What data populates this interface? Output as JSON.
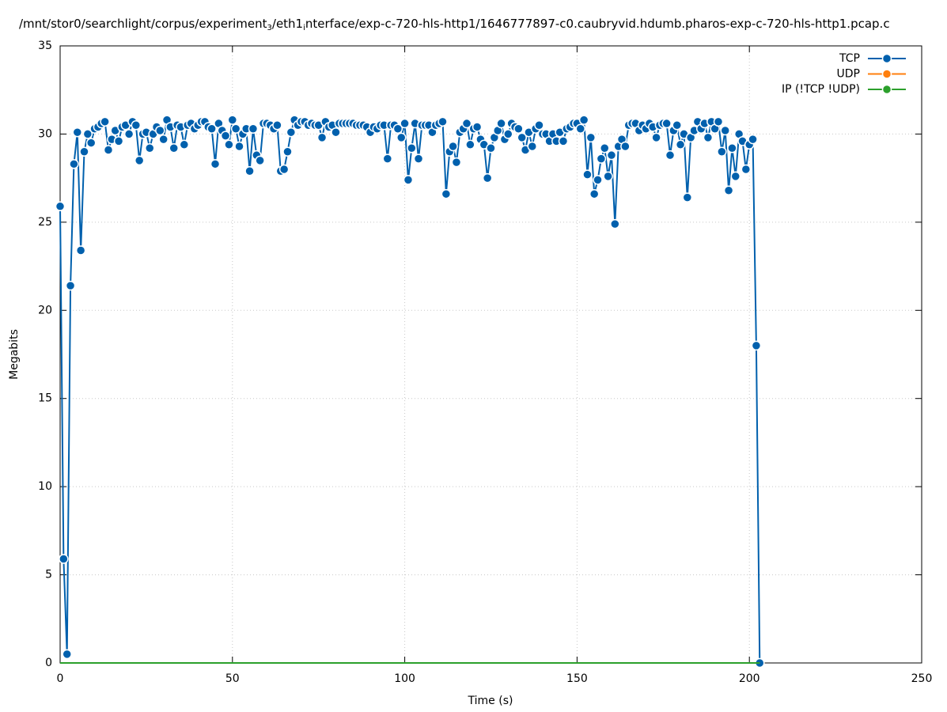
{
  "chart_data": {
    "type": "line",
    "title": [
      "/mnt/stor0/searchlight/corpus/experiment",
      "3",
      "/eth1",
      "i",
      "nterface/exp-c-720-hls-http1/1646777897-c0.caubryvid.hdumb.pharos-exp-c-720-hls-http1.pcap.c"
    ],
    "x_label": "Time (s)",
    "y_label": "Megabits",
    "xlim": [
      0,
      250
    ],
    "xticks": [
      0,
      50,
      100,
      150,
      200,
      250
    ],
    "ylim": [
      0,
      35
    ],
    "yticks": [
      0,
      5,
      10,
      15,
      20,
      25,
      30,
      35
    ],
    "grid": true,
    "legend": "top right",
    "x": [
      0,
      1,
      2,
      3,
      4,
      5,
      6,
      7,
      8,
      9,
      10,
      11,
      12,
      13,
      14,
      15,
      16,
      17,
      18,
      19,
      20,
      21,
      22,
      23,
      24,
      25,
      26,
      27,
      28,
      29,
      30,
      31,
      32,
      33,
      34,
      35,
      36,
      37,
      38,
      39,
      40,
      41,
      42,
      43,
      44,
      45,
      46,
      47,
      48,
      49,
      50,
      51,
      52,
      53,
      54,
      55,
      56,
      57,
      58,
      59,
      60,
      61,
      62,
      63,
      64,
      65,
      66,
      67,
      68,
      69,
      70,
      71,
      72,
      73,
      74,
      75,
      76,
      77,
      78,
      79,
      80,
      81,
      82,
      83,
      84,
      85,
      86,
      87,
      88,
      89,
      90,
      91,
      92,
      93,
      94,
      95,
      96,
      97,
      98,
      99,
      100,
      101,
      102,
      103,
      104,
      105,
      106,
      107,
      108,
      109,
      110,
      111,
      112,
      113,
      114,
      115,
      116,
      117,
      118,
      119,
      120,
      121,
      122,
      123,
      124,
      125,
      126,
      127,
      128,
      129,
      130,
      131,
      132,
      133,
      134,
      135,
      136,
      137,
      138,
      139,
      140,
      141,
      142,
      143,
      144,
      145,
      146,
      147,
      148,
      149,
      150,
      151,
      152,
      153,
      154,
      155,
      156,
      157,
      158,
      159,
      160,
      161,
      162,
      163,
      164,
      165,
      166,
      167,
      168,
      169,
      170,
      171,
      172,
      173,
      174,
      175,
      176,
      177,
      178,
      179,
      180,
      181,
      182,
      183,
      184,
      185,
      186,
      187,
      188,
      189,
      190,
      191,
      192,
      193,
      194,
      195,
      196,
      197,
      198,
      199,
      200,
      201,
      202,
      203
    ],
    "series": [
      {
        "name": "TCP",
        "color": "#0060ad",
        "values": [
          25.9,
          5.9,
          0.5,
          21.4,
          28.3,
          30.1,
          23.4,
          29.0,
          30.0,
          29.5,
          30.3,
          30.4,
          30.6,
          30.7,
          29.1,
          29.7,
          30.2,
          29.6,
          30.4,
          30.5,
          30.0,
          30.7,
          30.5,
          28.5,
          30.0,
          30.1,
          29.2,
          30.0,
          30.4,
          30.2,
          29.7,
          30.8,
          30.4,
          29.2,
          30.5,
          30.4,
          29.4,
          30.5,
          30.6,
          30.3,
          30.5,
          30.7,
          30.7,
          30.4,
          30.3,
          28.3,
          30.6,
          30.2,
          29.9,
          29.4,
          30.8,
          30.3,
          29.3,
          30.0,
          30.3,
          27.9,
          30.3,
          28.8,
          28.5,
          30.6,
          30.6,
          30.5,
          30.3,
          30.5,
          27.9,
          28.0,
          29.0,
          30.1,
          30.8,
          30.5,
          30.7,
          30.7,
          30.5,
          30.6,
          30.5,
          30.5,
          29.8,
          30.7,
          30.4,
          30.5,
          30.1,
          30.6,
          30.6,
          30.6,
          30.6,
          30.6,
          30.5,
          30.5,
          30.5,
          30.4,
          30.1,
          30.4,
          30.3,
          30.5,
          30.5,
          28.6,
          30.5,
          30.5,
          30.3,
          29.8,
          30.6,
          27.4,
          29.2,
          30.6,
          28.6,
          30.5,
          30.5,
          30.5,
          30.1,
          30.5,
          30.6,
          30.7,
          26.6,
          29.0,
          29.3,
          28.4,
          30.1,
          30.3,
          30.6,
          29.4,
          30.3,
          30.4,
          29.7,
          29.4,
          27.5,
          29.2,
          29.8,
          30.2,
          30.6,
          29.7,
          30.0,
          30.6,
          30.4,
          30.3,
          29.8,
          29.1,
          30.1,
          29.3,
          30.3,
          30.5,
          30.0,
          30.0,
          29.6,
          30.0,
          29.6,
          30.1,
          29.6,
          30.3,
          30.4,
          30.6,
          30.6,
          30.3,
          30.8,
          27.7,
          29.8,
          26.6,
          27.4,
          28.6,
          29.2,
          27.6,
          28.8,
          24.9,
          29.3,
          29.7,
          29.3,
          30.5,
          30.6,
          30.6,
          30.2,
          30.5,
          30.3,
          30.6,
          30.4,
          29.8,
          30.5,
          30.6,
          30.6,
          28.8,
          30.2,
          30.5,
          29.4,
          30.0,
          26.4,
          29.8,
          30.2,
          30.7,
          30.3,
          30.6,
          29.8,
          30.7,
          30.3,
          30.7,
          29.0,
          30.2,
          26.8,
          29.2,
          27.6,
          30.0,
          29.6,
          28.0,
          29.4,
          29.7,
          18.0,
          0
        ]
      },
      {
        "name": "UDP",
        "color": "#ff7f0e",
        "values": [
          0,
          0,
          0,
          0,
          0,
          0,
          0,
          0,
          0,
          0,
          0,
          0,
          0,
          0,
          0,
          0,
          0,
          0,
          0,
          0,
          0,
          0,
          0,
          0,
          0,
          0,
          0,
          0,
          0,
          0,
          0,
          0,
          0,
          0,
          0,
          0,
          0,
          0,
          0,
          0,
          0,
          0,
          0,
          0,
          0,
          0,
          0,
          0,
          0,
          0,
          0,
          0,
          0,
          0,
          0,
          0,
          0,
          0,
          0,
          0,
          0,
          0,
          0,
          0,
          0,
          0,
          0,
          0,
          0,
          0,
          0,
          0,
          0,
          0,
          0,
          0,
          0,
          0,
          0,
          0,
          0,
          0,
          0,
          0,
          0,
          0,
          0,
          0,
          0,
          0,
          0,
          0,
          0,
          0,
          0,
          0,
          0,
          0,
          0,
          0,
          0,
          0,
          0,
          0,
          0,
          0,
          0,
          0,
          0,
          0,
          0,
          0,
          0,
          0,
          0,
          0,
          0,
          0,
          0,
          0,
          0,
          0,
          0,
          0,
          0,
          0,
          0,
          0,
          0,
          0,
          0,
          0,
          0,
          0,
          0,
          0,
          0,
          0,
          0,
          0,
          0,
          0,
          0,
          0,
          0,
          0,
          0,
          0,
          0,
          0,
          0,
          0,
          0,
          0,
          0,
          0,
          0,
          0,
          0,
          0,
          0,
          0,
          0,
          0,
          0,
          0,
          0,
          0,
          0,
          0,
          0,
          0,
          0,
          0,
          0,
          0,
          0,
          0,
          0,
          0,
          0,
          0,
          0,
          0,
          0,
          0,
          0,
          0,
          0,
          0,
          0,
          0,
          0,
          0,
          0,
          0,
          0,
          0,
          0,
          0,
          0,
          0,
          0,
          0
        ]
      },
      {
        "name": "IP (!TCP  !UDP)",
        "color": "#2ca02c",
        "values": [
          0,
          0,
          0,
          0,
          0,
          0,
          0,
          0,
          0,
          0,
          0,
          0,
          0,
          0,
          0,
          0,
          0,
          0,
          0,
          0,
          0,
          0,
          0,
          0,
          0,
          0,
          0,
          0,
          0,
          0,
          0,
          0,
          0,
          0,
          0,
          0,
          0,
          0,
          0,
          0,
          0,
          0,
          0,
          0,
          0,
          0,
          0,
          0,
          0,
          0,
          0,
          0,
          0,
          0,
          0,
          0,
          0,
          0,
          0,
          0,
          0,
          0,
          0,
          0,
          0,
          0,
          0,
          0,
          0,
          0,
          0,
          0,
          0,
          0,
          0,
          0,
          0,
          0,
          0,
          0,
          0,
          0,
          0,
          0,
          0,
          0,
          0,
          0,
          0,
          0,
          0,
          0,
          0,
          0,
          0,
          0,
          0,
          0,
          0,
          0,
          0,
          0,
          0,
          0,
          0,
          0,
          0,
          0,
          0,
          0,
          0,
          0,
          0,
          0,
          0,
          0,
          0,
          0,
          0,
          0,
          0,
          0,
          0,
          0,
          0,
          0,
          0,
          0,
          0,
          0,
          0,
          0,
          0,
          0,
          0,
          0,
          0,
          0,
          0,
          0,
          0,
          0,
          0,
          0,
          0,
          0,
          0,
          0,
          0,
          0,
          0,
          0,
          0,
          0,
          0,
          0,
          0,
          0,
          0,
          0,
          0,
          0,
          0,
          0,
          0,
          0,
          0,
          0,
          0,
          0,
          0,
          0,
          0,
          0,
          0,
          0,
          0,
          0,
          0,
          0,
          0,
          0,
          0,
          0,
          0,
          0,
          0,
          0,
          0,
          0,
          0,
          0,
          0,
          0,
          0,
          0,
          0,
          0,
          0,
          0,
          0,
          0,
          0,
          0
        ]
      }
    ]
  }
}
